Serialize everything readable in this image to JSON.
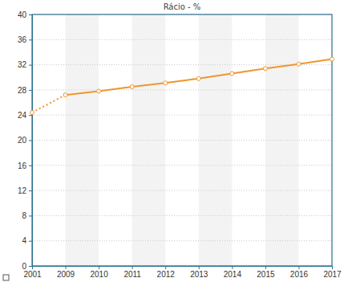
{
  "chart_data": {
    "type": "line",
    "title": "Rácio - %",
    "categories": [
      "2001",
      "2009",
      "2010",
      "2011",
      "2012",
      "2013",
      "2014",
      "2015",
      "2016",
      "2017"
    ],
    "values": [
      24.4,
      27.2,
      27.8,
      28.5,
      29.1,
      29.8,
      30.6,
      31.4,
      32.1,
      32.9
    ],
    "color": "#f0962e",
    "marker": "circle",
    "line_style": "solid",
    "ylim": [
      0,
      40
    ],
    "yticks": [
      0,
      4,
      8,
      12,
      16,
      20,
      24,
      28,
      32,
      36,
      40
    ],
    "grid": true
  }
}
